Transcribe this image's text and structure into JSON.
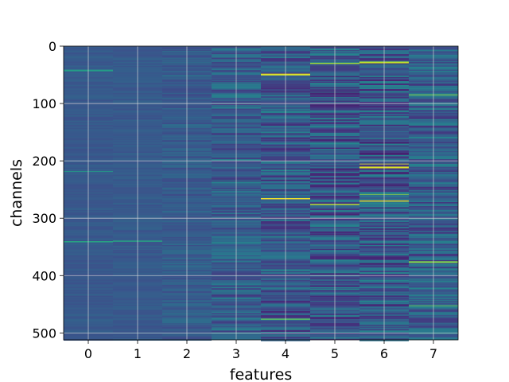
{
  "chart_data": {
    "type": "heatmap",
    "title": "",
    "xlabel": "features",
    "ylabel": "channels",
    "x_categories": [
      "0",
      "1",
      "2",
      "3",
      "4",
      "5",
      "6",
      "7"
    ],
    "y_ticks": [
      0,
      100,
      200,
      300,
      400,
      500
    ],
    "ylim": [
      512,
      0
    ],
    "n_rows": 512,
    "colormap": [
      "#440154",
      "#472c7a",
      "#3b528b",
      "#2c728e",
      "#21918c",
      "#28ae80",
      "#5ec962",
      "#addc30",
      "#fde725"
    ],
    "background_color": "#3b4f8c",
    "grid": true,
    "grid_color": "#d9d9d9",
    "column_intensity": [
      {
        "feature": "0",
        "mean": 0.28,
        "spread": 0.03
      },
      {
        "feature": "1",
        "mean": 0.28,
        "spread": 0.03
      },
      {
        "feature": "2",
        "mean": 0.29,
        "spread": 0.06
      },
      {
        "feature": "3",
        "mean": 0.3,
        "spread": 0.13
      },
      {
        "feature": "4",
        "mean": 0.27,
        "spread": 0.16
      },
      {
        "feature": "5",
        "mean": 0.28,
        "spread": 0.18
      },
      {
        "feature": "6",
        "mean": 0.28,
        "spread": 0.19
      },
      {
        "feature": "7",
        "mean": 0.29,
        "spread": 0.15
      }
    ],
    "highlight_rows": [
      {
        "feature": "0",
        "row": 42,
        "value": 0.55
      },
      {
        "feature": "0",
        "row": 218,
        "value": 0.55
      },
      {
        "feature": "0",
        "row": 340,
        "value": 0.6
      },
      {
        "feature": "1",
        "row": 340,
        "value": 0.6
      },
      {
        "feature": "4",
        "row": 50,
        "value": 0.95
      },
      {
        "feature": "4",
        "row": 265,
        "value": 1.0
      },
      {
        "feature": "4",
        "row": 475,
        "value": 0.75
      },
      {
        "feature": "5",
        "row": 30,
        "value": 0.85
      },
      {
        "feature": "5",
        "row": 275,
        "value": 0.9
      },
      {
        "feature": "6",
        "row": 28,
        "value": 0.9
      },
      {
        "feature": "6",
        "row": 205,
        "value": 1.0
      },
      {
        "feature": "6",
        "row": 210,
        "value": 0.95
      },
      {
        "feature": "6",
        "row": 258,
        "value": 0.85
      },
      {
        "feature": "6",
        "row": 270,
        "value": 0.95
      },
      {
        "feature": "7",
        "row": 85,
        "value": 0.75
      },
      {
        "feature": "7",
        "row": 375,
        "value": 0.8
      },
      {
        "feature": "7",
        "row": 452,
        "value": 0.8
      }
    ]
  }
}
